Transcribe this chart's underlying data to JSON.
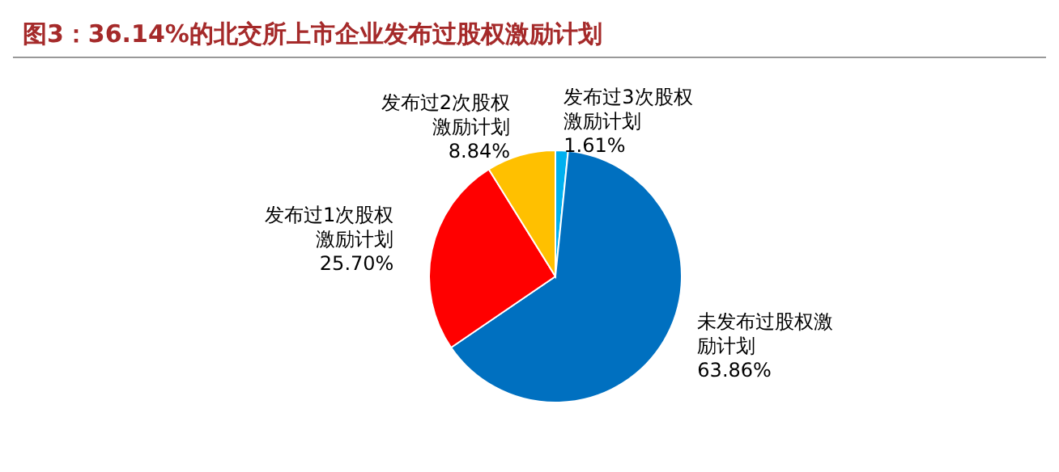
{
  "chart_data": {
    "type": "pie",
    "title": "图3：36.14%的北交所上市企业发布过股权激励计划",
    "categories": [
      "发布过3次股权激励计划",
      "未发布过股权激励计划",
      "发布过1次股权激励计划",
      "发布过2次股权激励计划"
    ],
    "values": [
      1.61,
      63.86,
      25.7,
      8.84
    ],
    "colors": [
      "#00b0f0",
      "#0070c0",
      "#ff0000",
      "#ffc000"
    ],
    "value_labels": [
      "1.61%",
      "63.86%",
      "25.70%",
      "8.84%"
    ]
  }
}
